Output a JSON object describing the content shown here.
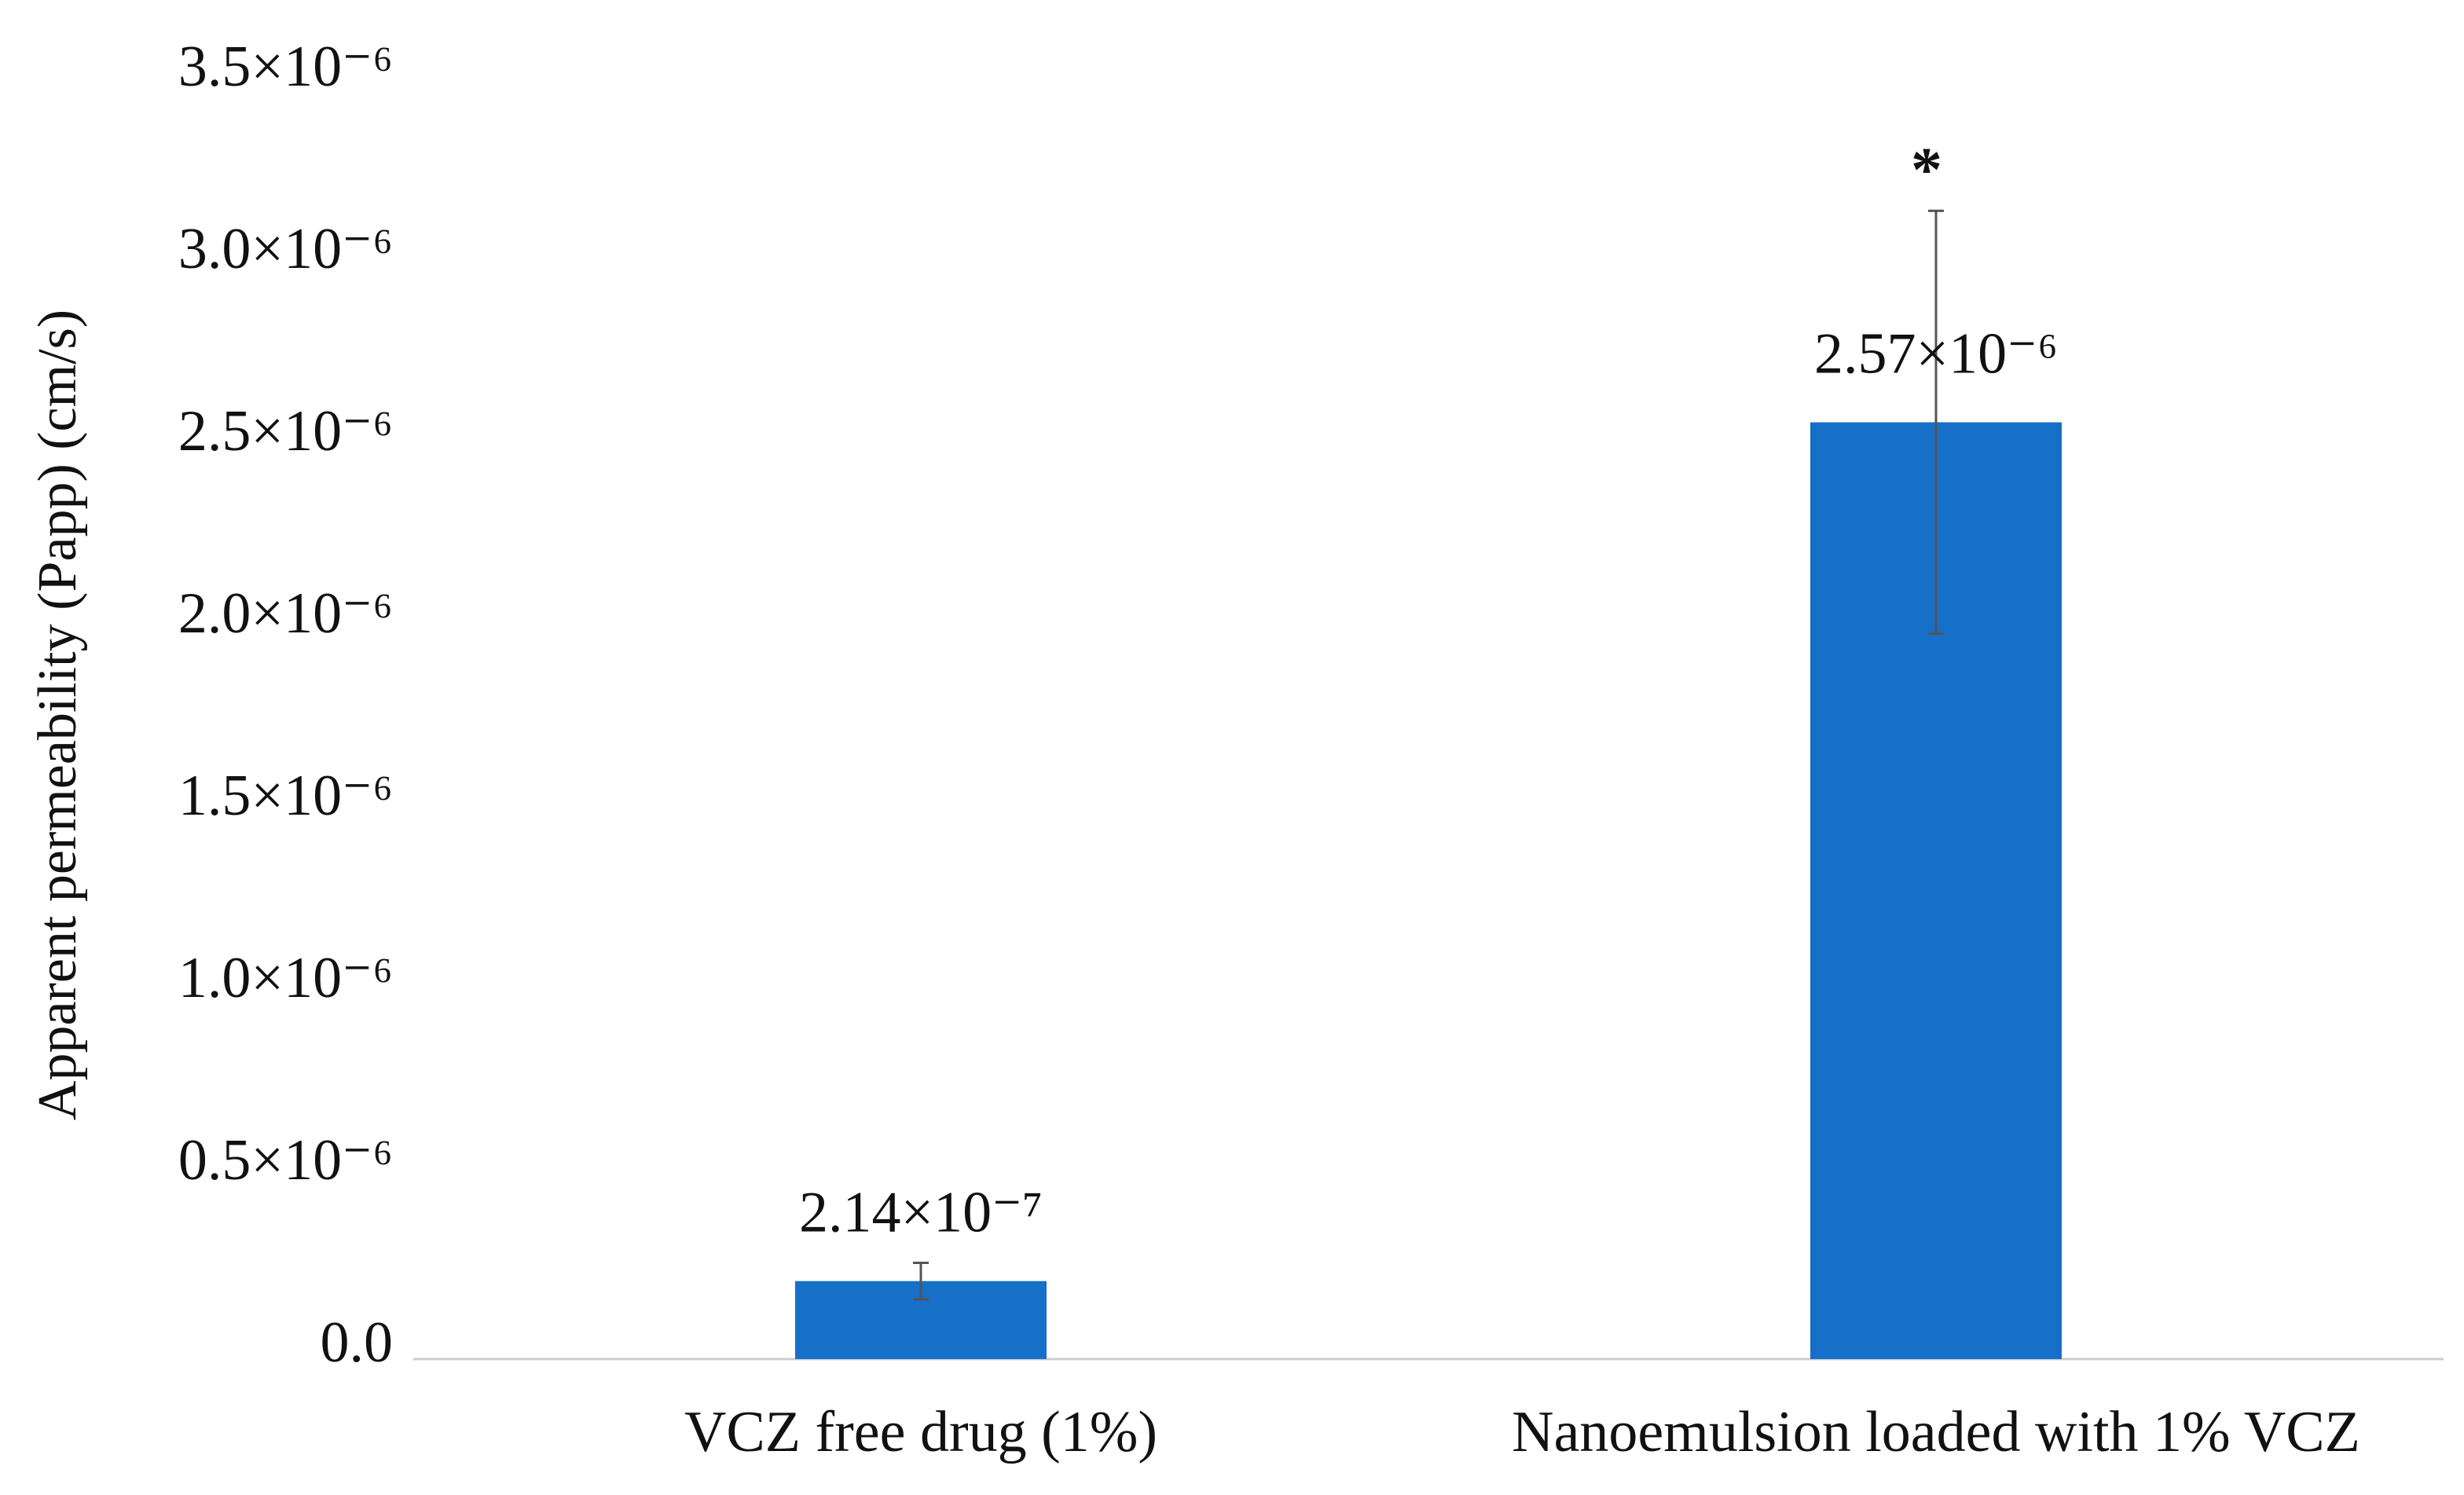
{
  "chart_data": {
    "type": "bar",
    "y_label": "Apparent permeability (Papp) (cm/s)",
    "categories": [
      "VCZ free drug (1%)",
      "Nanoemulsion loaded with 1% VCZ"
    ],
    "values": [
      2.14e-07,
      2.57e-06
    ],
    "value_labels": [
      "2.14×10⁻⁷",
      "2.57×10⁻⁶"
    ],
    "errors": [
      5e-08,
      5.8e-07
    ],
    "color": "#1670c8",
    "annotations": [
      null,
      "*"
    ],
    "ylim": [
      0,
      3.5e-06
    ],
    "yticks": [
      {
        "value": 0,
        "label": "0.0"
      },
      {
        "value": 5e-07,
        "label": "0.5×10⁻⁶"
      },
      {
        "value": 1e-06,
        "label": "1.0×10⁻⁶"
      },
      {
        "value": 1.5e-06,
        "label": "1.5×10⁻⁶"
      },
      {
        "value": 2e-06,
        "label": "2.0×10⁻⁶"
      },
      {
        "value": 2.5e-06,
        "label": "2.5×10⁻⁶"
      },
      {
        "value": 3e-06,
        "label": "3.0×10⁻⁶"
      },
      {
        "value": 3.5e-06,
        "label": "3.5×10⁻⁶"
      }
    ],
    "grid": false
  }
}
